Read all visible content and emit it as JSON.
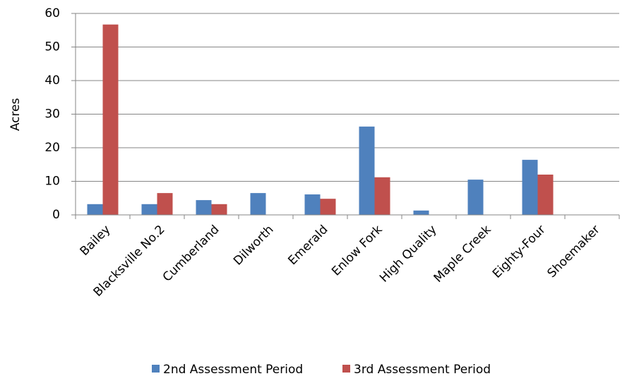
{
  "chart_data": {
    "type": "bar",
    "y_label": "Acres",
    "categories": [
      "Bailey",
      "Blacksville No.2",
      "Cumberland",
      "Dilworth",
      "Emerald",
      "Enlow Fork",
      "High Quality",
      "Maple Creek",
      "Eighty-Four",
      "Shoemaker"
    ],
    "series": [
      {
        "name": "2nd Assessment Period",
        "color": "#4f81bd",
        "values": [
          3.2,
          3.2,
          4.4,
          6.5,
          6.1,
          26.3,
          1.3,
          10.5,
          16.4,
          0
        ]
      },
      {
        "name": "3rd Assessment Period",
        "color": "#c0504d",
        "values": [
          56.7,
          6.5,
          3.2,
          0,
          4.8,
          11.2,
          0,
          0,
          12.0,
          0
        ]
      }
    ],
    "ylim": [
      0,
      60
    ],
    "yticks": [
      0,
      10,
      20,
      30,
      40,
      50,
      60
    ],
    "grid": true,
    "legend": "bottom"
  }
}
